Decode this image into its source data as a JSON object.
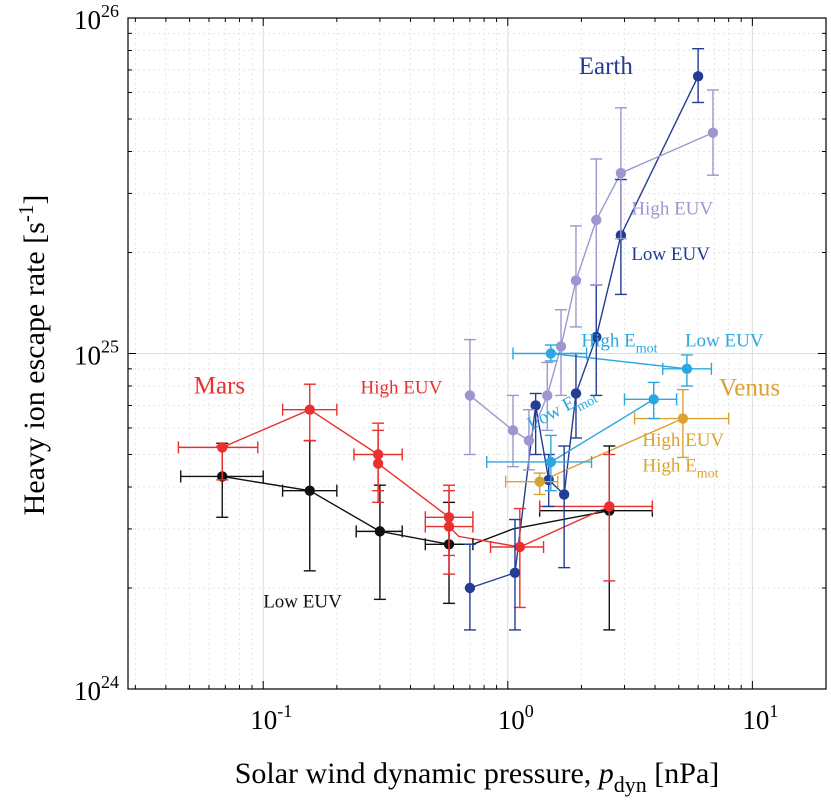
{
  "chart_data": {
    "type": "scatter",
    "xscale": "log",
    "yscale": "log",
    "xlim": [
      0.028,
      20
    ],
    "ylim": [
      1e+24,
      1e+26
    ],
    "grid": true,
    "xlabel": {
      "main": "Solar wind dynamic pressure, ",
      "var": "p",
      "sub": "dyn",
      "unit": " [nPa]"
    },
    "ylabel": {
      "main": "Heavy ion escape rate [s",
      "sup": "-1",
      "end": "]"
    },
    "x_ticks": [
      {
        "value": 0.1,
        "base": "10",
        "exp": "-1"
      },
      {
        "value": 1,
        "base": "10",
        "exp": "0"
      },
      {
        "value": 10,
        "base": "10",
        "exp": "1"
      }
    ],
    "y_ticks": [
      {
        "value": 1e+24,
        "base": "10",
        "exp": "24"
      },
      {
        "value": 1e+25,
        "base": "10",
        "exp": "25"
      },
      {
        "value": 1e+26,
        "base": "10",
        "exp": "26"
      }
    ],
    "series": [
      {
        "name": "Mars Low EUV",
        "color": "#111111",
        "key": "mars-low",
        "points": [
          {
            "x": 0.068,
            "y": 4.3e+24,
            "xlo": 0.046,
            "xhi": 0.1,
            "ylo": 3.25e+24,
            "yhi": 5.4e+24
          },
          {
            "x": 0.155,
            "y": 3.9e+24,
            "xlo": 0.12,
            "xhi": 0.2,
            "ylo": 2.25e+24,
            "yhi": 5.5e+24
          },
          {
            "x": 0.3,
            "y": 2.95e+24,
            "xlo": 0.24,
            "xhi": 0.37,
            "ylo": 1.85e+24,
            "yhi": 4.05e+24
          },
          {
            "x": 0.575,
            "y": 2.7e+24,
            "xlo": 0.46,
            "xhi": 0.72,
            "ylo": 1.8e+24,
            "yhi": 3.6e+24
          },
          {
            "x": 2.6,
            "y": 3.4e+24,
            "xlo": 1.35,
            "xhi": 3.9,
            "ylo": 1.5e+24,
            "yhi": 5.3e+24
          }
        ]
      },
      {
        "name": "Mars High EUV",
        "color": "#e8302e",
        "key": "mars-high",
        "points": [
          {
            "x": 0.068,
            "y": 5.25e+24,
            "xlo": 0.045,
            "xhi": 0.095,
            "ylo": 4.2e+24,
            "yhi": 5.3e+24
          },
          {
            "x": 0.155,
            "y": 6.8e+24,
            "xlo": 0.12,
            "xhi": 0.2,
            "ylo": 5.5e+24,
            "yhi": 8.1e+24
          },
          {
            "x": 0.295,
            "y": 5e+24,
            "xlo": 0.235,
            "xhi": 0.37,
            "ylo": 3.9e+24,
            "yhi": 6.2e+24
          },
          {
            "x": 0.295,
            "y": 4.7e+24,
            "ylo": 3.6e+24,
            "yhi": 5.9e+24
          },
          {
            "x": 0.575,
            "y": 3.25e+24,
            "xlo": 0.46,
            "xhi": 0.72,
            "ylo": 2.5e+24,
            "yhi": 4.05e+24
          },
          {
            "x": 0.575,
            "y": 3.05e+24,
            "xlo": 0.46,
            "xhi": 0.72,
            "ylo": 2.2e+24,
            "yhi": 3.9e+24
          },
          {
            "x": 1.12,
            "y": 2.65e+24,
            "xlo": 0.85,
            "xhi": 1.4,
            "ylo": 1.75e+24,
            "yhi": 3.45e+24
          },
          {
            "x": 2.6,
            "y": 3.5e+24,
            "xlo": 1.35,
            "xhi": 3.9,
            "ylo": 2.1e+24,
            "yhi": 5e+24
          }
        ]
      },
      {
        "name": "Earth Low EUV",
        "color": "#233c94",
        "key": "earth-low",
        "points": [
          {
            "x": 0.7,
            "y": 2e+24,
            "ylo": 1.5e+24,
            "yhi": 2.7e+24
          },
          {
            "x": 1.07,
            "y": 2.22e+24,
            "ylo": 1.5e+24,
            "yhi": 3.2e+24
          },
          {
            "x": 1.3,
            "y": 7e+24,
            "ylo": 5e+24,
            "yhi": 7.6e+24
          },
          {
            "x": 1.47,
            "y": 4.2e+24,
            "ylo": 3.5e+24,
            "yhi": 5e+24
          },
          {
            "x": 1.7,
            "y": 3.8e+24,
            "ylo": 2.3e+24,
            "yhi": 5.3e+24
          },
          {
            "x": 1.9,
            "y": 7.6e+24,
            "ylo": 5.6e+24,
            "yhi": 1e+25
          },
          {
            "x": 2.3,
            "y": 1.12e+25,
            "ylo": 7.5e+24,
            "yhi": 1.6e+25
          },
          {
            "x": 2.9,
            "y": 2.25e+25,
            "ylo": 1.5e+25,
            "yhi": 3.3e+25
          },
          {
            "x": 6.0,
            "y": 6.7e+25,
            "ylo": 5.6e+25,
            "yhi": 8.1e+25
          }
        ]
      },
      {
        "name": "Earth High EUV",
        "color": "#9d97cf",
        "key": "earth-high",
        "points": [
          {
            "x": 0.7,
            "y": 7.5e+24,
            "ylo": 5e+24,
            "yhi": 1.1e+25
          },
          {
            "x": 1.05,
            "y": 5.9e+24,
            "ylo": 4.6e+24,
            "yhi": 7.5e+24
          },
          {
            "x": 1.22,
            "y": 5.5e+24,
            "ylo": 4.5e+24,
            "yhi": 6.8e+24
          },
          {
            "x": 1.45,
            "y": 7.5e+24,
            "ylo": 5.9e+24,
            "yhi": 9.4e+24
          },
          {
            "x": 1.65,
            "y": 1.05e+25,
            "ylo": 7.5e+24,
            "yhi": 1.35e+25
          },
          {
            "x": 1.9,
            "y": 1.65e+25,
            "ylo": 1.2e+25,
            "yhi": 2.4e+25
          },
          {
            "x": 2.3,
            "y": 2.5e+25,
            "ylo": 1.6e+25,
            "yhi": 3.8e+25
          },
          {
            "x": 2.9,
            "y": 3.45e+25,
            "ylo": 2.2e+25,
            "yhi": 5.4e+25
          },
          {
            "x": 6.9,
            "y": 4.55e+25,
            "ylo": 3.4e+25,
            "yhi": 6.1e+25
          }
        ]
      },
      {
        "name": "Venus",
        "color": "#dca22f",
        "key": "venus",
        "points": [
          {
            "x": 1.35,
            "y": 4.15e+24,
            "xlo": 0.98,
            "xhi": 1.6,
            "ylo": 3.8e+24,
            "yhi": 4.4e+24
          },
          {
            "x": 5.2,
            "y": 6.4e+24,
            "xlo": 3.3,
            "xhi": 8.0,
            "ylo": 4.9e+24,
            "yhi": 7.8e+24
          }
        ]
      },
      {
        "name": "Venus High E_mot Low EUV",
        "color": "#2ba8df",
        "key": "venus-emot",
        "points": [
          {
            "x": 1.5,
            "y": 4.75e+24,
            "xlo": 0.82,
            "xhi": 2.2,
            "ylo": 3.9e+24,
            "yhi": 5.7e+24
          },
          {
            "x": 1.5,
            "y": 1e+25,
            "xlo": 1.05,
            "xhi": 2.1,
            "ylo": 9.5e+24,
            "yhi": 1.06e+25
          },
          {
            "x": 3.95,
            "y": 7.3e+24,
            "xlo": 3.0,
            "xhi": 4.9,
            "ylo": 6.4e+24,
            "yhi": 8.2e+24
          },
          {
            "x": 5.4,
            "y": 9e+24,
            "xlo": 4.3,
            "xhi": 6.8,
            "ylo": 8e+24,
            "yhi": 9.9e+24
          }
        ]
      }
    ],
    "lines": [
      {
        "color": "#111111",
        "key": "mars-low",
        "pts": [
          [
            0.068,
            4.3e+24
          ],
          [
            0.155,
            3.9e+24
          ],
          [
            0.3,
            2.95e+24
          ],
          [
            0.575,
            2.7e+24
          ],
          [
            0.72,
            2.7e+24
          ],
          [
            1.05,
            3e+24
          ],
          [
            2.6,
            3.4e+24
          ]
        ]
      },
      {
        "color": "#e8302e",
        "key": "mars-high",
        "pts": [
          [
            0.068,
            5.25e+24
          ],
          [
            0.155,
            6.8e+24
          ],
          [
            0.295,
            5e+24
          ],
          [
            0.295,
            4.7e+24
          ],
          [
            0.575,
            3.25e+24
          ],
          [
            0.575,
            3.05e+24
          ],
          [
            0.63,
            2.85e+24
          ],
          [
            1.12,
            2.65e+24
          ],
          [
            2.6,
            3.5e+24
          ]
        ]
      },
      {
        "color": "#233c94",
        "key": "earth-low",
        "pts": [
          [
            0.7,
            2e+24
          ],
          [
            1.07,
            2.22e+24
          ],
          [
            1.3,
            7e+24
          ],
          [
            1.47,
            4.2e+24
          ],
          [
            1.7,
            3.8e+24
          ],
          [
            1.9,
            7.6e+24
          ],
          [
            2.3,
            1.12e+25
          ],
          [
            2.9,
            2.25e+25
          ],
          [
            6.0,
            6.7e+25
          ]
        ]
      },
      {
        "color": "#9d97cf",
        "key": "earth-high",
        "pts": [
          [
            0.7,
            7.5e+24
          ],
          [
            1.05,
            5.9e+24
          ],
          [
            1.22,
            5.5e+24
          ],
          [
            1.45,
            7.5e+24
          ],
          [
            1.65,
            1.05e+25
          ],
          [
            1.9,
            1.65e+25
          ],
          [
            2.3,
            2.5e+25
          ],
          [
            2.9,
            3.45e+25
          ],
          [
            6.9,
            4.55e+25
          ]
        ]
      },
      {
        "color": "#dca22f",
        "key": "venus",
        "pts": [
          [
            1.35,
            4.15e+24
          ],
          [
            5.2,
            6.4e+24
          ]
        ]
      },
      {
        "color": "#2ba8df",
        "key": "venus-emot-low",
        "pts": [
          [
            1.5,
            4.75e+24
          ],
          [
            3.95,
            7.3e+24
          ]
        ]
      },
      {
        "color": "#2ba8df",
        "key": "venus-emot-high",
        "pts": [
          [
            1.5,
            1e+25
          ],
          [
            5.4,
            9e+24
          ]
        ]
      }
    ],
    "annotations": [
      {
        "key": "earth",
        "text": "Earth",
        "color": "#233c94",
        "x": 1.95,
        "y": 6.8e+25,
        "size": 25
      },
      {
        "key": "earth-high-euv",
        "text": "High EUV",
        "color": "#9d97cf",
        "x": 3.2,
        "y": 2.6e+25,
        "size": 19
      },
      {
        "key": "earth-low-euv",
        "text": "Low EUV",
        "color": "#233c94",
        "x": 3.2,
        "y": 1.9e+25,
        "size": 19
      },
      {
        "key": "venus-high-emot",
        "text": "High E",
        "sub": "mot",
        "color": "#2ba8df",
        "x": 2.0,
        "y": 1.05e+25,
        "size": 19
      },
      {
        "key": "venus-low-euv",
        "text": "Low EUV",
        "color": "#2ba8df",
        "x": 5.3,
        "y": 1.05e+25,
        "size": 19
      },
      {
        "key": "venus-low-emot",
        "text": "Low E",
        "sub": "mot",
        "color": "#2ba8df",
        "x": 1.25,
        "y": 5.9e+24,
        "size": 19,
        "rotate": -28
      },
      {
        "key": "venus",
        "text": "Venus",
        "color": "#dca22f",
        "x": 7.3,
        "y": 7.5e+24,
        "size": 25
      },
      {
        "key": "venus-high-euv",
        "text": "High EUV",
        "color": "#dca22f",
        "x": 3.55,
        "y": 5.3e+24,
        "size": 19
      },
      {
        "key": "venus-high-emot2",
        "text": "High E",
        "sub": "mot",
        "color": "#dca22f",
        "x": 3.55,
        "y": 4.45e+24,
        "size": 19
      },
      {
        "key": "mars",
        "text": "Mars",
        "color": "#e8302e",
        "x": 0.052,
        "y": 7.6e+24,
        "size": 25
      },
      {
        "key": "mars-high-euv",
        "text": "High EUV",
        "color": "#e8302e",
        "x": 0.25,
        "y": 7.6e+24,
        "size": 19
      },
      {
        "key": "mars-low-euv",
        "text": "Low EUV",
        "color": "#111111",
        "x": 0.1,
        "y": 1.75e+24,
        "size": 19
      }
    ]
  }
}
